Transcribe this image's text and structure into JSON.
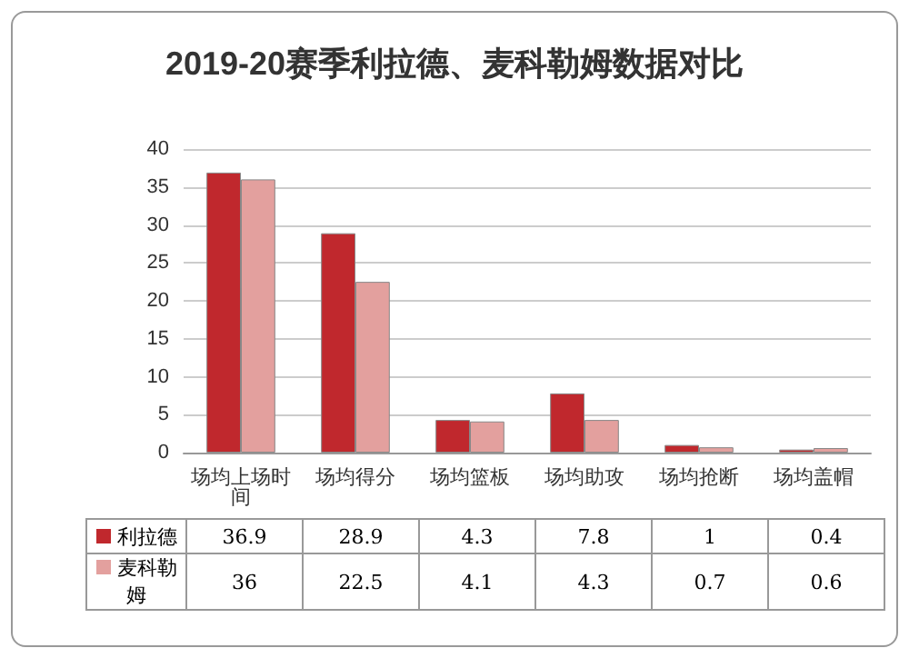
{
  "chart_data": {
    "type": "bar",
    "title": "2019-20赛季利拉德、麦科勒姆数据对比",
    "categories": [
      "场均上场时间",
      "场均得分",
      "场均篮板",
      "场均助攻",
      "场均抢断",
      "场均盖帽"
    ],
    "series": [
      {
        "name": "利拉德",
        "color": "#c0282d",
        "values": [
          36.9,
          28.9,
          4.3,
          7.8,
          1,
          0.4
        ]
      },
      {
        "name": "麦科勒姆",
        "color": "#e3a09e",
        "values": [
          36,
          22.5,
          4.1,
          4.3,
          0.7,
          0.6
        ]
      }
    ],
    "ylim": [
      0,
      40
    ],
    "yticks": [
      0,
      5,
      10,
      15,
      20,
      25,
      30,
      35,
      40
    ],
    "grid": "y",
    "legend": "bottom",
    "data_labels": true
  }
}
